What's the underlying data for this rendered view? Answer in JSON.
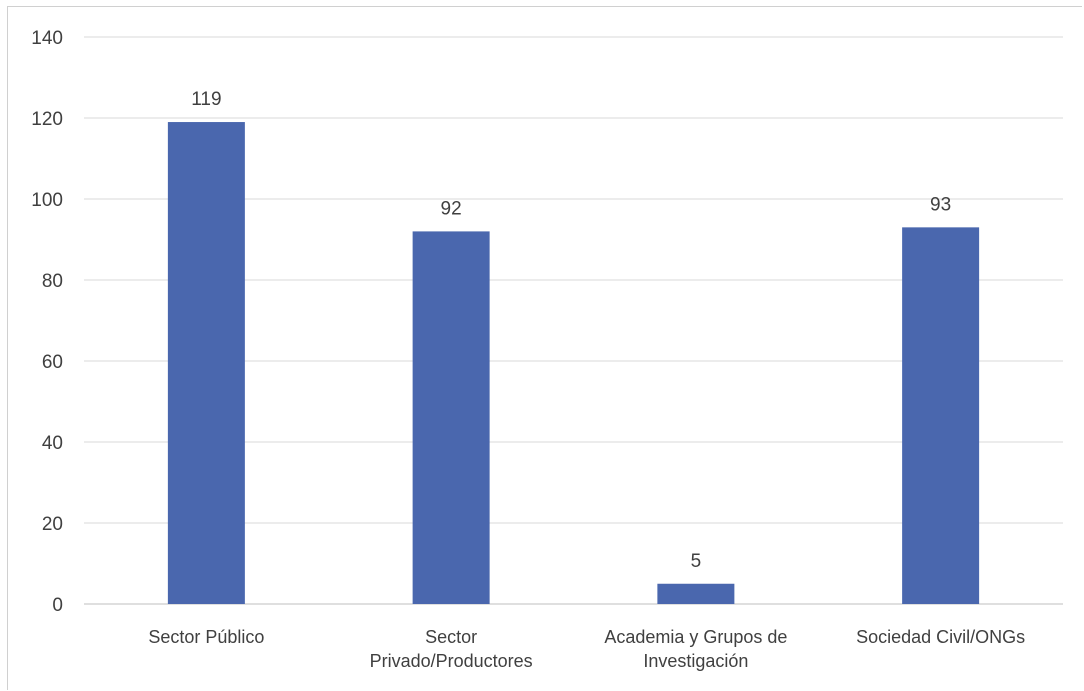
{
  "chart_data": {
    "type": "bar",
    "categories": [
      [
        "Sector Público"
      ],
      [
        "Sector",
        "Privado/Productores"
      ],
      [
        "Academia y Grupos de",
        "Investigación"
      ],
      [
        "Sociedad Civil/ONGs"
      ]
    ],
    "values": [
      119,
      92,
      5,
      93
    ],
    "data_labels": [
      "119",
      "92",
      "5",
      "93"
    ],
    "yticks": [
      "0",
      "20",
      "40",
      "60",
      "80",
      "100",
      "120",
      "140"
    ],
    "ylim": [
      0,
      140
    ],
    "grid": true,
    "legend": "none",
    "colors": {
      "bar": "#4a67ae",
      "grid": "#d9d9d9",
      "text": "#404040"
    }
  }
}
